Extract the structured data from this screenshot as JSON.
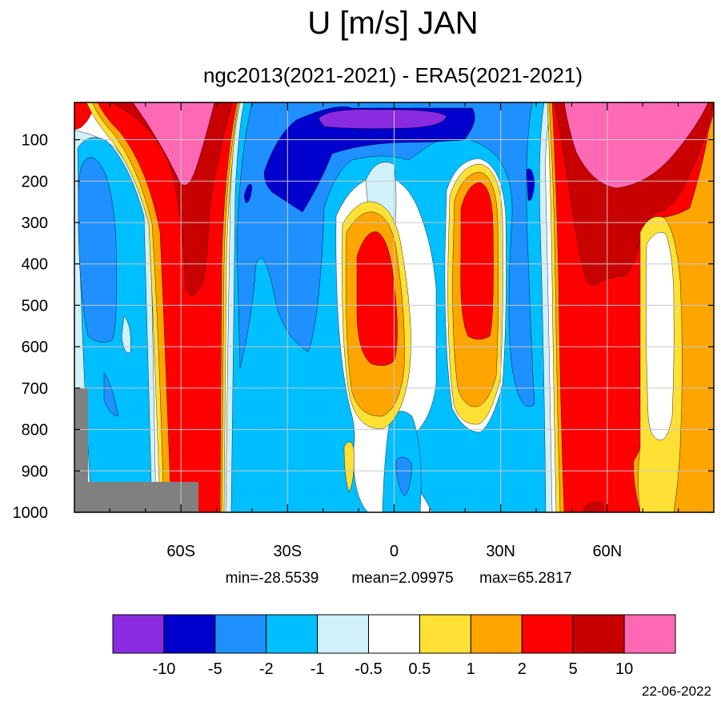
{
  "chart_data": {
    "type": "heatmap",
    "title": "U [m/s] JAN",
    "subtitle": "ngc2013(2021-2021) - ERA5(2021-2021)",
    "xlabel": "",
    "ylabel": "",
    "x_range": [
      -90,
      90
    ],
    "y_range": [
      10,
      1000
    ],
    "y_ticks": [
      100,
      200,
      300,
      400,
      500,
      600,
      700,
      800,
      900,
      1000
    ],
    "x_ticks": [
      {
        "value": -60,
        "label": "60S"
      },
      {
        "value": -30,
        "label": "30S"
      },
      {
        "value": 0,
        "label": "0"
      },
      {
        "value": 30,
        "label": "30N"
      },
      {
        "value": 60,
        "label": "60N"
      }
    ],
    "grid": true,
    "stats": {
      "min_label": "min=-28.5539",
      "mean_label": "mean=2.09975",
      "max_label": "max=65.2817",
      "min": -28.5539,
      "mean": 2.09975,
      "max": 65.2817
    },
    "levels": [
      -10,
      -5,
      -2,
      -1,
      -0.5,
      0.5,
      1,
      2,
      5,
      10
    ],
    "level_labels": [
      "-10",
      "-5",
      "-2",
      "-1",
      "-0.5",
      "0.5",
      "1",
      "2",
      "5",
      "10"
    ],
    "colors": [
      "#8a2be2",
      "#0000cd",
      "#1e90ff",
      "#00bfff",
      "#d0f0fa",
      "#ffffff",
      "#ffe135",
      "#ffa500",
      "#ff0000",
      "#c80000",
      "#ff69b4"
    ],
    "missing_color": "#808080",
    "legend_placement": "bottom",
    "date": "22-06-2022"
  }
}
